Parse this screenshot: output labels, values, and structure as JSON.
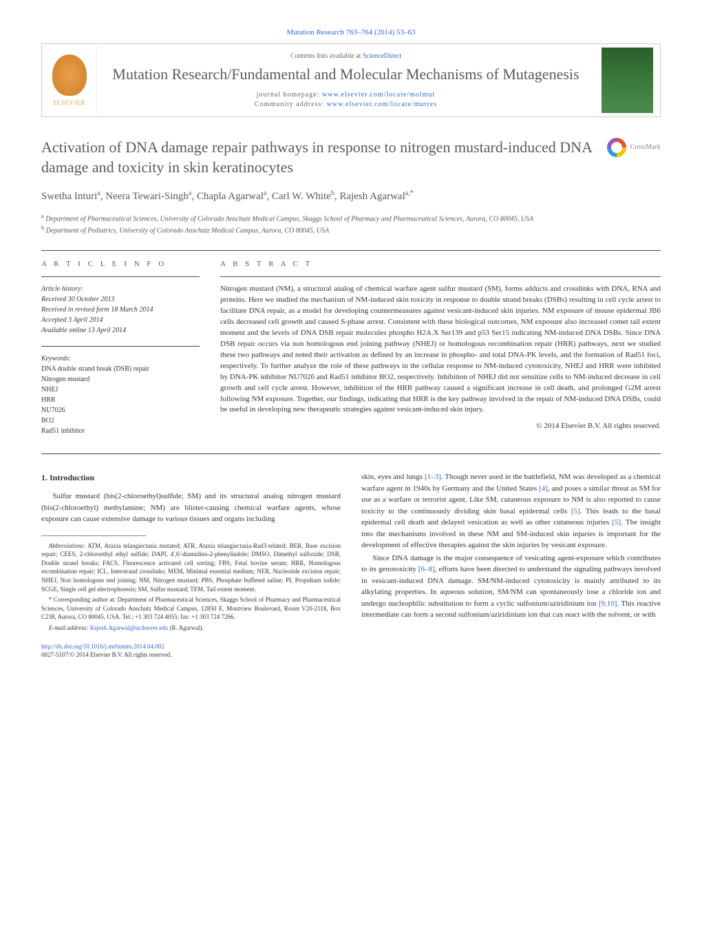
{
  "journal_ref": "Mutation Research 763–764 (2014) 53–63",
  "header": {
    "publisher": "ELSEVIER",
    "contents_prefix": "Contents lists available at ",
    "contents_link": "ScienceDirect",
    "journal_name": "Mutation Research/Fundamental and Molecular Mechanisms of Mutagenesis",
    "homepage_label": "journal homepage: ",
    "homepage_url": "www.elsevier.com/locate/molmut",
    "community_label": "Community address: ",
    "community_url": "www.elsevier.com/locate/mutres"
  },
  "title": "Activation of DNA damage repair pathways in response to nitrogen mustard-induced DNA damage and toxicity in skin keratinocytes",
  "crossmark": "CrossMark",
  "authors_html": "Swetha Inturi<sup>a</sup>, Neera Tewari-Singh<sup>a</sup>, Chapla Agarwal<sup>a</sup>, Carl W. White<sup>b</sup>, Rajesh Agarwal<sup>a,*</sup>",
  "affiliations": [
    "a Department of Pharmaceutical Sciences, University of Colorado Anschutz Medical Campus, Skaggs School of Pharmacy and Pharmaceutical Sciences, Aurora, CO 80045, USA",
    "b Department of Pediatrics, University of Colorado Anschutz Medical Campus, Aurora, CO 80045, USA"
  ],
  "info": {
    "heading": "A R T I C L E   I N F O",
    "history_label": "Article history:",
    "history": [
      "Received 30 October 2013",
      "Received in revised form 18 March 2014",
      "Accepted 3 April 2014",
      "Available online 13 April 2014"
    ],
    "keywords_label": "Keywords:",
    "keywords": [
      "DNA double strand break (DSB) repair",
      "Nitrogen mustard",
      "NHEJ",
      "HRR",
      "NU7026",
      "BO2",
      "Rad51 inhibitor"
    ]
  },
  "abstract": {
    "heading": "A B S T R A C T",
    "text": "Nitrogen mustard (NM), a structural analog of chemical warfare agent sulfur mustard (SM), forms adducts and crosslinks with DNA, RNA and proteins. Here we studied the mechanism of NM-induced skin toxicity in response to double strand breaks (DSBs) resulting in cell cycle arrest to facilitate DNA repair, as a model for developing countermeasures against vesicant-induced skin injuries. NM exposure of mouse epidermal JB6 cells decreased cell growth and caused S-phase arrest. Consistent with these biological outcomes, NM exposure also increased comet tail extent moment and the levels of DNA DSB repair molecules phospho H2A.X Ser139 and p53 Ser15 indicating NM-induced DNA DSBs. Since DNA DSB repair occurs via non homologous end joining pathway (NHEJ) or homologous recombination repair (HRR) pathways, next we studied these two pathways and noted their activation as defined by an increase in phospho- and total DNA-PK levels, and the formation of Rad51 foci, respectively. To further analyze the role of these pathways in the cellular response to NM-induced cytotoxicity, NHEJ and HRR were inhibited by DNA-PK inhibitor NU7026 and Rad51 inhibitor BO2, respectively. Inhibition of NHEJ did not sensitize cells to NM-induced decrease in cell growth and cell cycle arrest. However, inhibition of the HRR pathway caused a significant increase in cell death, and prolonged G2M arrest following NM exposure. Together, our findings, indicating that HRR is the key pathway involved in the repair of NM-induced DNA DSBs, could be useful in developing new therapeutic strategies against vesicant-induced skin injury.",
    "copyright": "© 2014 Elsevier B.V. All rights reserved."
  },
  "section1_heading": "1. Introduction",
  "body_left_p1": "Sulfur mustard (bis(2-chloroethyl)sulfide; SM) and its structural analog nitrogen mustard (bis(2-chloroethyl) methylamine; NM) are blister-causing chemical warfare agents, whose exposure can cause extensive damage to various tissues and organs including",
  "body_right_p1": "skin, eyes and lungs [1–3]. Though never used in the battlefield, NM was developed as a chemical warfare agent in 1940s by Germany and the United States [4], and poses a similar threat as SM for use as a warfare or terrorist agent. Like SM, cutaneous exposure to NM is also reported to cause toxicity to the continuously dividing skin basal epidermal cells [5]. This leads to the basal epidermal cell death and delayed vesication as well as other cutaneous injuries [5]. The insight into the mechanisms involved in these NM and SM-induced skin injuries is important for the development of effective therapies against the skin injuries by vesicant exposure.",
  "body_right_p2": "Since DNA damage is the major consequence of vesicating agent-exposure which contributes to its genotoxicity [6–8], efforts have been directed to understand the signaling pathways involved in vesicant-induced DNA damage. SM/NM-induced cytotoxicity is mainly attributed to its alkylating properties. In aqueous solution, SM/NM can spontaneously lose a chloride ion and undergo nucleophilic substitution to form a cyclic sulfonium/aziridinium ion [9,10]. This reactive intermediate can form a second sulfonium/aziridinium ion that can react with the solvent, or with",
  "footnotes": {
    "abbrev_label": "Abbreviations:",
    "abbrev_text": " ATM, Ataxia telangiectasia mutated; ATR, Ataxia telangiectasia-Rad3-related; BER, Base excision repair; CEES, 2-chloroethyl ethyl sulfide; DAPI, 4',6'-diamidino-2-phenylindole; DMSO, Dimethyl sulfoxide; DSB, Double strand breaks; FACS, Fluorescence activated cell sorting; FBS, Fetal bovine serum; HRR, Homologous recombination repair; ICL, Interstrand crosslinks; MEM, Minimal essential medium; NER, Nucleotide excision repair; NHEJ, Non homologous end joining; NM, Nitrogen mustard; PBS, Phosphate buffered saline; PI, Propidium iodide; SCGE, Single cell gel electrophoresis; SM, Sulfur mustard; TEM, Tail extent moment.",
    "corr_text": "* Corresponding author at: Department of Pharmaceutical Sciences, Skaggs School of Pharmacy and Pharmaceutical Sciences, University of Colorado Anschutz Medical Campus, 12850 E. Montview Boulevard, Room V20-2118, Box C238, Aurora, CO 80045, USA. Tel.: +1 303 724 4055; fax: +1 303 724 7266.",
    "email_label": "E-mail address: ",
    "email": "Rajesh.Agarwal@ucdenver.edu",
    "email_suffix": " (R. Agarwal)."
  },
  "doi": {
    "url": "http://dx.doi.org/10.1016/j.mrfmmm.2014.04.002",
    "issn_line": "0027-5107/© 2014 Elsevier B.V. All rights reserved."
  }
}
